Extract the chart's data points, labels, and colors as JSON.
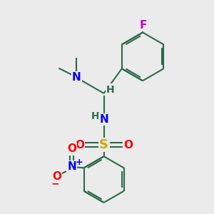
{
  "bg_color": "#ebebeb",
  "bond_color": "#2d6b4a",
  "bond_width": 1.5,
  "atom_colors": {
    "N": "#0000ff",
    "O": "#ff0000",
    "S": "#ccaa00",
    "F": "#cc00cc",
    "H": "#2d6b4a",
    "C": "#2d6b4a",
    "plus": "#0000ff",
    "minus": "#ff0000"
  },
  "figsize": [
    3.0,
    3.0
  ],
  "dpi": 100,
  "xlim": [
    0,
    10
  ],
  "ylim": [
    0,
    10
  ]
}
